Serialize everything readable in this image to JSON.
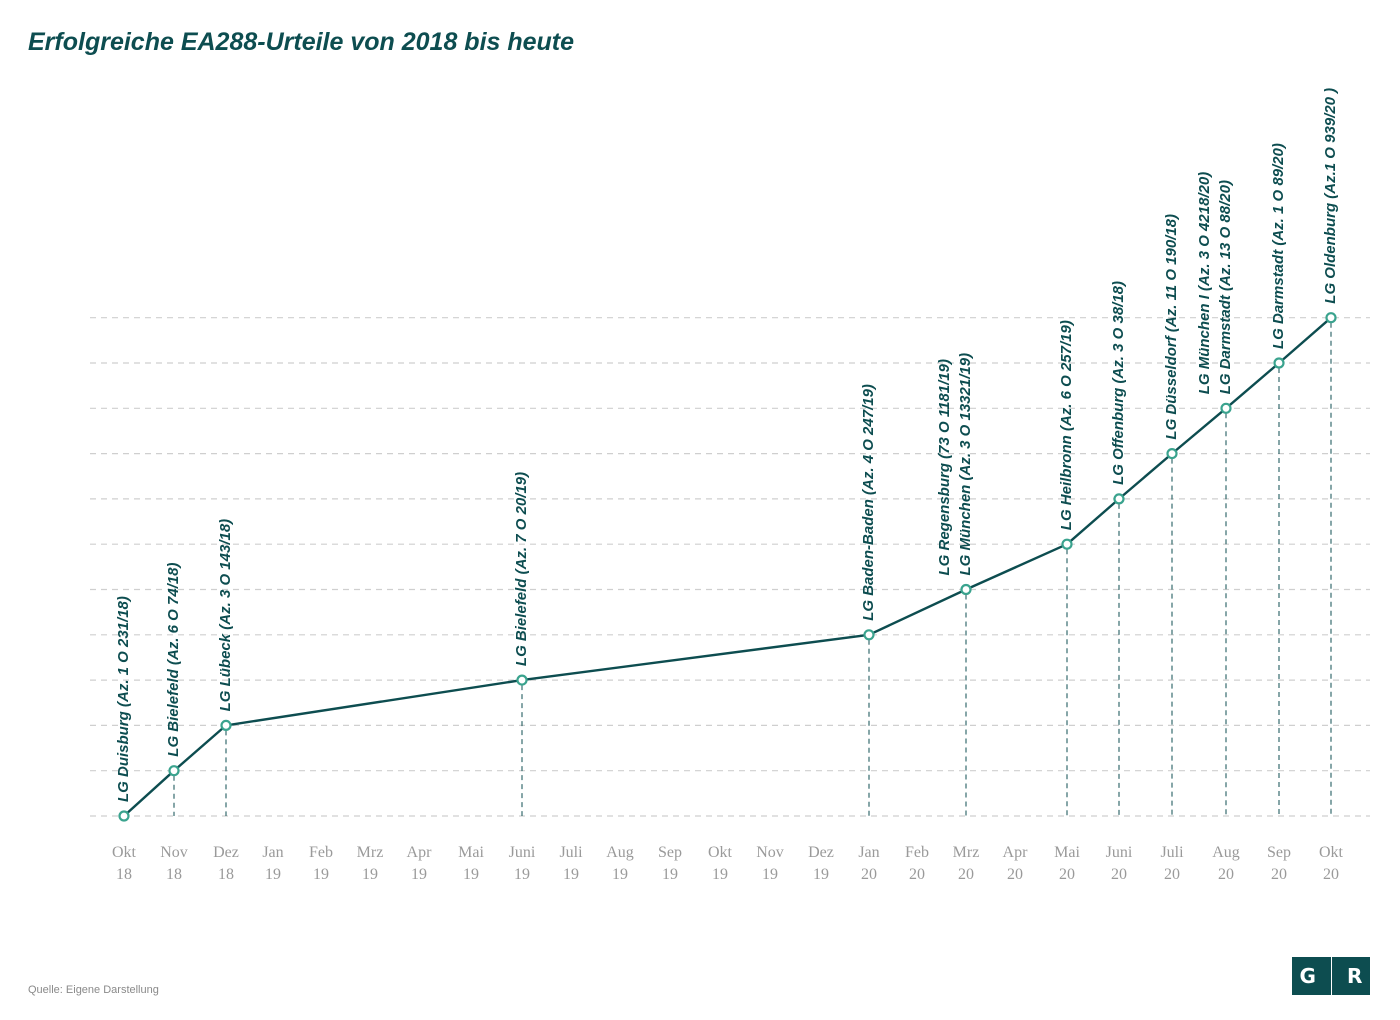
{
  "title": "Erfolgreiche EA288-Urteile von 2018 bis heute",
  "source": "Quelle: Eigene Darstellung",
  "logo": {
    "left": "G",
    "right": "R"
  },
  "colors": {
    "line": "#0d4d50",
    "marker": "#3aa38e",
    "grid": "#cfcfcf",
    "tick": "#9a9a9a"
  },
  "chart_data": {
    "type": "line",
    "title": "Erfolgreiche EA288-Urteile von 2018 bis heute",
    "xlabel": "",
    "ylabel": "",
    "grid": true,
    "categories": [
      [
        "Okt",
        "18"
      ],
      [
        "Nov",
        "18"
      ],
      [
        "Dez",
        "18"
      ],
      [
        "Jan",
        "19"
      ],
      [
        "Feb",
        "19"
      ],
      [
        "Mrz",
        "19"
      ],
      [
        "Apr",
        "19"
      ],
      [
        "Mai",
        "19"
      ],
      [
        "Juni",
        "19"
      ],
      [
        "Juli",
        "19"
      ],
      [
        "Aug",
        "19"
      ],
      [
        "Sep",
        "19"
      ],
      [
        "Okt",
        "19"
      ],
      [
        "Nov",
        "19"
      ],
      [
        "Dez",
        "19"
      ],
      [
        "Jan",
        "20"
      ],
      [
        "Feb",
        "20"
      ],
      [
        "Mrz",
        "20"
      ],
      [
        "Apr",
        "20"
      ],
      [
        "Mai",
        "20"
      ],
      [
        "Juni",
        "20"
      ],
      [
        "Juli",
        "20"
      ],
      [
        "Aug",
        "20"
      ],
      [
        "Sep",
        "20"
      ],
      [
        "Okt",
        "20"
      ]
    ],
    "ylim": [
      0,
      11
    ],
    "points": [
      {
        "month": 0,
        "y": 0,
        "labels": [
          "LG Duisburg (Az. 1 O 231/18)"
        ]
      },
      {
        "month": 1,
        "y": 1,
        "labels": [
          "LG Bielefeld (Az. 6 O 74/18)"
        ]
      },
      {
        "month": 2,
        "y": 2,
        "labels": [
          "LG Lübeck (Az. 3 O 143/18)"
        ]
      },
      {
        "month": 8,
        "y": 3,
        "labels": [
          "LG Bielefeld (Az. 7 O 20/19)"
        ]
      },
      {
        "month": 15,
        "y": 4,
        "labels": [
          "LG Baden-Baden (Az. 4 O 247/19)"
        ]
      },
      {
        "month": 17,
        "y": 5,
        "labels": [
          "LG Regensburg (73 O 1181/19)",
          "LG München (Az. 3 O 13321/19)"
        ]
      },
      {
        "month": 19,
        "y": 6,
        "labels": [
          "LG Heilbronn (Az. 6 O 257/19)"
        ]
      },
      {
        "month": 20,
        "y": 7,
        "labels": [
          "LG Offenburg (Az. 3 O 38/18)"
        ]
      },
      {
        "month": 21,
        "y": 8,
        "labels": [
          "LG Düsseldorf (Az. 11 O 190/18)"
        ]
      },
      {
        "month": 22,
        "y": 9,
        "labels": [
          "LG München I (Az. 3 O 4218/20)",
          "LG Darmstadt (Az. 13 O 88/20)"
        ]
      },
      {
        "month": 23,
        "y": 10,
        "labels": [
          "LG Darmstadt (Az. 1 O 89/20)"
        ]
      },
      {
        "month": 24,
        "y": 11,
        "labels": [
          "LG Oldenburg (Az.1 O 939/20 )"
        ]
      }
    ]
  }
}
